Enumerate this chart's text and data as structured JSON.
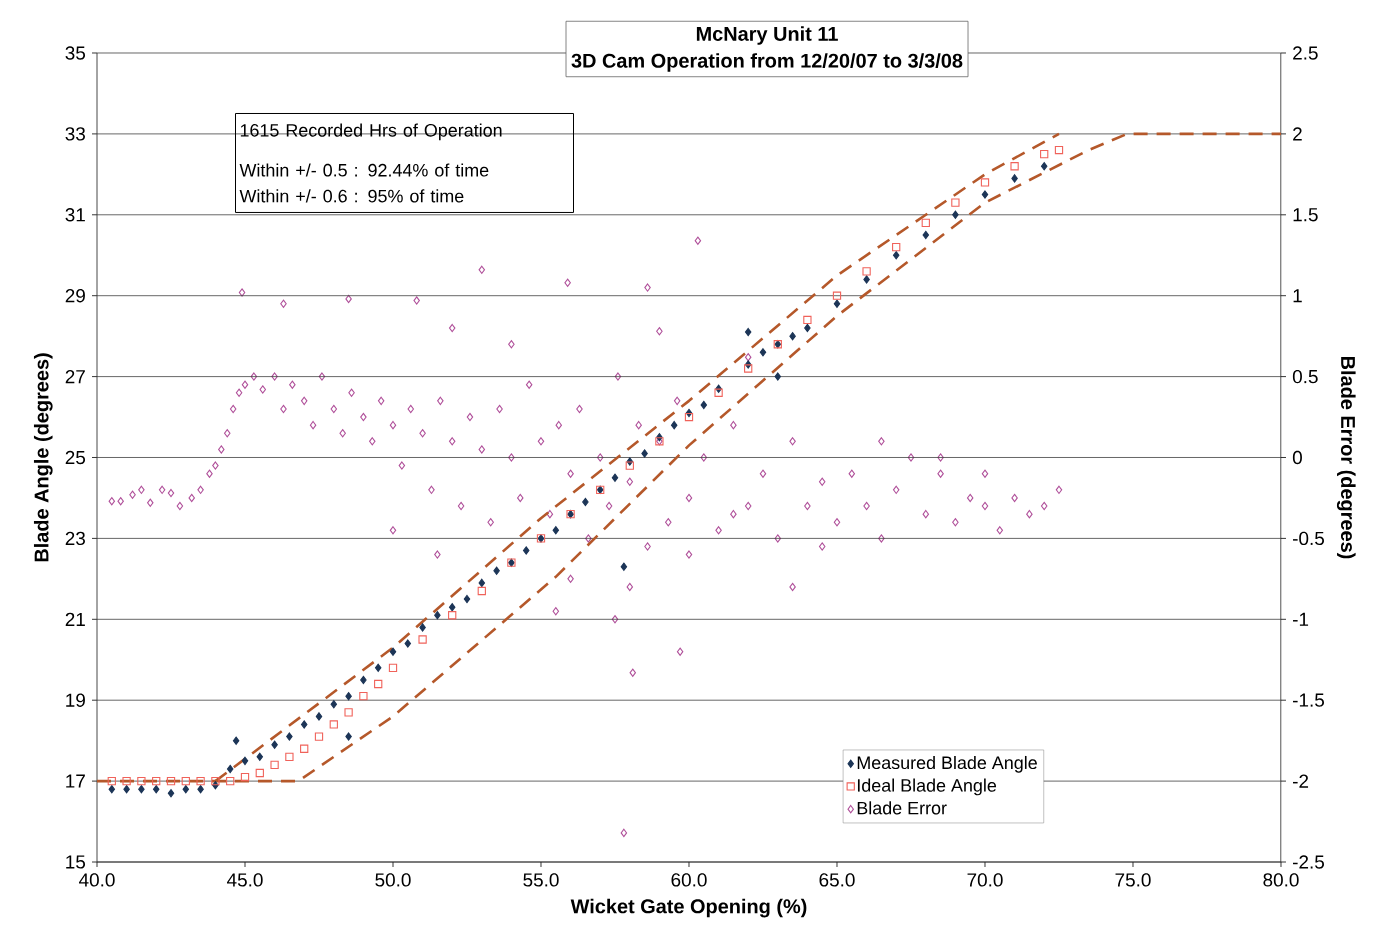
{
  "chart_data": {
    "type": "scatter",
    "title": "McNary Unit 11",
    "subtitle": "3D Cam Operation from 12/20/07 to 3/3/08",
    "xlabel": "Wicket Gate Opening (%)",
    "ylabel": "Blade Angle (degrees)",
    "y2label": "Blade Error (degrees)",
    "annotations": [
      "1615 Recorded Hrs of Operation",
      "Within +/- 0.5 :  92.44% of time",
      "Within +/- 0.6 :  95% of time"
    ],
    "xlim": [
      40,
      80
    ],
    "xticks": [
      {
        "value": 40,
        "label": "40.0"
      },
      {
        "value": 45,
        "label": "45.0"
      },
      {
        "value": 50,
        "label": "50.0"
      },
      {
        "value": 55,
        "label": "55.0"
      },
      {
        "value": 60,
        "label": "60.0"
      },
      {
        "value": 65,
        "label": "65.0"
      },
      {
        "value": 70,
        "label": "70.0"
      },
      {
        "value": 75,
        "label": "75.0"
      },
      {
        "value": 80,
        "label": "80.0"
      }
    ],
    "ylim": [
      15,
      35
    ],
    "yticks": [
      15,
      17,
      19,
      21,
      23,
      25,
      27,
      29,
      31,
      33,
      35
    ],
    "y2lim": [
      -2.5,
      2.5
    ],
    "y2ticks": [
      -2.5,
      -2,
      -1.5,
      -1,
      -0.5,
      0,
      0.5,
      1,
      1.5,
      2,
      2.5
    ],
    "grid": "y",
    "legend": "bottom right",
    "series": [
      {
        "name": "Measured Blade Angle",
        "color": "#1c3557",
        "marker": "diamond",
        "x": [
          40.5,
          41,
          41.5,
          42,
          42.5,
          43,
          43.5,
          44,
          44.5,
          45,
          45.5,
          46,
          46.5,
          47,
          47.5,
          48,
          48.5,
          49,
          49.5,
          50,
          50.5,
          51,
          51.5,
          52,
          52.5,
          53,
          53.5,
          54,
          54.5,
          55,
          55.5,
          56,
          56.5,
          57,
          57.5,
          58,
          58.5,
          59,
          59.5,
          60,
          60.5,
          61,
          62,
          62.5,
          63,
          63.5,
          64,
          65,
          66,
          67,
          68,
          69,
          70,
          71,
          72,
          44.7,
          48.5,
          57.8,
          62,
          63
        ],
        "values": [
          16.8,
          16.8,
          16.8,
          16.8,
          16.7,
          16.8,
          16.8,
          16.9,
          17.3,
          17.5,
          17.6,
          17.9,
          18.1,
          18.4,
          18.6,
          18.9,
          19.1,
          19.5,
          19.8,
          20.2,
          20.4,
          20.8,
          21.1,
          21.3,
          21.5,
          21.9,
          22.2,
          22.4,
          22.7,
          23.0,
          23.2,
          23.6,
          23.9,
          24.2,
          24.5,
          24.9,
          25.1,
          25.5,
          25.8,
          26.1,
          26.3,
          26.7,
          27.3,
          27.6,
          27.8,
          28.0,
          28.2,
          28.8,
          29.4,
          30.0,
          30.5,
          31.0,
          31.5,
          31.9,
          32.2,
          18.0,
          18.1,
          22.3,
          28.1,
          27.0
        ]
      },
      {
        "name": "Ideal Blade Angle",
        "color": "#f0625a",
        "marker": "square",
        "x": [
          40.5,
          41,
          41.5,
          42,
          42.5,
          43,
          43.5,
          44,
          44.5,
          45,
          45.5,
          46,
          46.5,
          47,
          47.5,
          48,
          48.5,
          49,
          49.5,
          50,
          51,
          52,
          53,
          54,
          55,
          56,
          57,
          58,
          59,
          60,
          61,
          62,
          63,
          64,
          65,
          66,
          67,
          68,
          69,
          70,
          71,
          72,
          72.5
        ],
        "values": [
          17.0,
          17.0,
          17.0,
          17.0,
          17.0,
          17.0,
          17.0,
          17.0,
          17.0,
          17.1,
          17.2,
          17.4,
          17.6,
          17.8,
          18.1,
          18.4,
          18.7,
          19.1,
          19.4,
          19.8,
          20.5,
          21.1,
          21.7,
          22.4,
          23.0,
          23.6,
          24.2,
          24.8,
          25.4,
          26.0,
          26.6,
          27.2,
          27.8,
          28.4,
          29.0,
          29.6,
          30.2,
          30.8,
          31.3,
          31.8,
          32.2,
          32.5,
          32.6
        ]
      },
      {
        "name": "Blade Error",
        "color": "#b0509a",
        "marker": "diamond",
        "axis": "y2",
        "x": [
          40.5,
          40.8,
          41.2,
          41.5,
          41.8,
          42.2,
          42.5,
          42.8,
          43.2,
          43.5,
          43.8,
          44,
          44.2,
          44.4,
          44.6,
          44.8,
          45,
          45.3,
          45.6,
          46,
          46.3,
          46.6,
          47,
          47.3,
          47.6,
          48,
          48.3,
          48.6,
          49,
          49.3,
          49.6,
          50,
          50.3,
          50.6,
          51,
          51.3,
          51.6,
          52,
          52.3,
          52.6,
          53,
          53.3,
          53.6,
          54,
          54.3,
          54.6,
          55,
          55.3,
          55.6,
          56,
          56.3,
          56.6,
          57,
          57.3,
          57.6,
          58,
          58.3,
          58.6,
          59,
          59.3,
          59.6,
          60,
          60.5,
          61,
          61.5,
          62,
          62.5,
          63,
          63.5,
          64,
          64.5,
          65,
          65.5,
          66,
          66.5,
          67,
          67.5,
          68,
          68.5,
          69,
          69.5,
          70,
          70.5,
          71,
          71.5,
          72,
          72.5,
          44.9,
          46.3,
          48.5,
          50.8,
          53.0,
          55.9,
          58.6,
          60.3,
          62,
          59,
          61.5,
          63.5,
          64.5,
          57.8,
          58.1,
          59.7,
          57.5,
          55.5,
          52,
          54,
          66.5,
          68.5,
          70,
          56,
          58,
          60,
          50,
          51.5
        ],
        "values": [
          -0.27,
          -0.27,
          -0.23,
          -0.2,
          -0.28,
          -0.2,
          -0.22,
          -0.3,
          -0.25,
          -0.2,
          -0.1,
          -0.05,
          0.05,
          0.15,
          0.3,
          0.4,
          0.45,
          0.5,
          0.42,
          0.5,
          0.3,
          0.45,
          0.35,
          0.2,
          0.5,
          0.3,
          0.15,
          0.4,
          0.25,
          0.1,
          0.35,
          0.2,
          -0.05,
          0.3,
          0.15,
          -0.2,
          0.35,
          0.1,
          -0.3,
          0.25,
          0.05,
          -0.4,
          0.3,
          0.0,
          -0.25,
          0.45,
          0.1,
          -0.35,
          0.2,
          -0.1,
          0.3,
          -0.5,
          0.0,
          -0.3,
          0.5,
          -0.15,
          0.2,
          -0.55,
          0.1,
          -0.4,
          0.35,
          -0.25,
          0.0,
          -0.45,
          0.2,
          -0.3,
          -0.1,
          -0.5,
          0.1,
          -0.3,
          -0.15,
          -0.4,
          -0.1,
          -0.3,
          -0.5,
          -0.2,
          0.0,
          -0.35,
          -0.1,
          -0.4,
          -0.25,
          -0.3,
          -0.45,
          -0.25,
          -0.35,
          -0.3,
          -0.2,
          1.02,
          0.95,
          0.98,
          0.97,
          1.16,
          1.08,
          1.05,
          1.34,
          0.62,
          0.78,
          -0.35,
          -0.8,
          -0.55,
          -2.32,
          -1.33,
          -1.2,
          -1.0,
          -0.95,
          0.8,
          0.7,
          0.1,
          0.0,
          -0.1,
          -0.75,
          -0.8,
          -0.6,
          -0.45,
          -0.6
        ]
      },
      {
        "type": "line",
        "color": "#b5582a",
        "line_style": "dashed",
        "x": [
          44,
          50,
          55,
          60,
          65,
          70,
          72.5
        ],
        "values": [
          17,
          20.3,
          23.5,
          26.4,
          29.5,
          32.0,
          33
        ]
      },
      {
        "type": "line",
        "color": "#b5582a",
        "line_style": "dashed",
        "x": [
          40,
          46.8,
          50,
          55.5,
          60,
          65,
          70,
          73.5,
          74.8,
          80
        ],
        "values": [
          17,
          17,
          18.6,
          22.05,
          25.3,
          28.5,
          31.3,
          32.6,
          33,
          33
        ]
      }
    ]
  }
}
